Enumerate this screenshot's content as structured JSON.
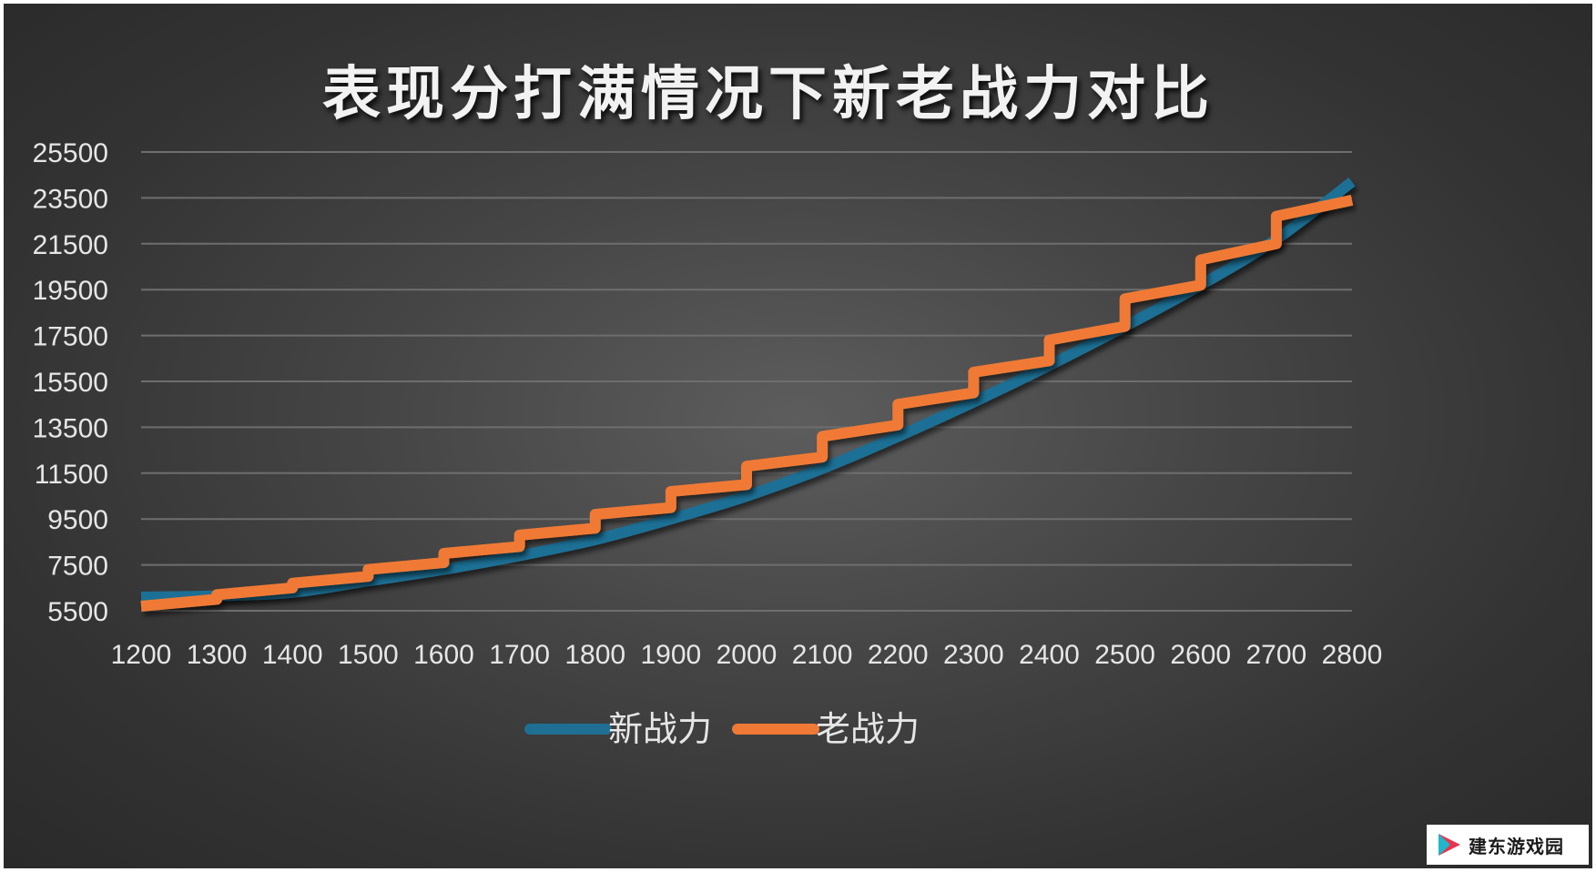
{
  "chart_data": {
    "type": "line",
    "title": "表现分打满情况下新老战力对比",
    "xlabel": "",
    "ylabel": "",
    "xlim": [
      1200,
      2800
    ],
    "ylim": [
      5500,
      25500
    ],
    "x_ticks": [
      1200,
      1300,
      1400,
      1500,
      1600,
      1700,
      1800,
      1900,
      2000,
      2100,
      2200,
      2300,
      2400,
      2500,
      2600,
      2700,
      2800
    ],
    "y_ticks": [
      5500,
      7500,
      9500,
      11500,
      13500,
      15500,
      17500,
      19500,
      21500,
      23500,
      25500
    ],
    "grid": "horizontal",
    "legend_position": "bottom",
    "series": [
      {
        "name": "新战力",
        "color": "#1f6f95",
        "style": "smooth",
        "x": [
          1200,
          1300,
          1400,
          1500,
          1600,
          1700,
          1800,
          1900,
          2000,
          2100,
          2200,
          2300,
          2400,
          2500,
          2600,
          2700,
          2800
        ],
        "values": [
          6100,
          6150,
          6300,
          6800,
          7300,
          7900,
          8600,
          9500,
          10500,
          11700,
          13100,
          14600,
          16200,
          17900,
          19700,
          21700,
          24200
        ]
      },
      {
        "name": "老战力",
        "color": "#f07a35",
        "style": "step",
        "segments": [
          {
            "x_start": 1200,
            "x_end": 1300,
            "y_start": 5700,
            "y_end": 6000
          },
          {
            "x_start": 1300,
            "x_end": 1400,
            "y_start": 6200,
            "y_end": 6500
          },
          {
            "x_start": 1400,
            "x_end": 1500,
            "y_start": 6700,
            "y_end": 7000
          },
          {
            "x_start": 1500,
            "x_end": 1600,
            "y_start": 7300,
            "y_end": 7600
          },
          {
            "x_start": 1600,
            "x_end": 1700,
            "y_start": 8000,
            "y_end": 8300
          },
          {
            "x_start": 1700,
            "x_end": 1800,
            "y_start": 8800,
            "y_end": 9100
          },
          {
            "x_start": 1800,
            "x_end": 1900,
            "y_start": 9700,
            "y_end": 10000
          },
          {
            "x_start": 1900,
            "x_end": 2000,
            "y_start": 10700,
            "y_end": 11000
          },
          {
            "x_start": 2000,
            "x_end": 2100,
            "y_start": 11800,
            "y_end": 12200
          },
          {
            "x_start": 2100,
            "x_end": 2200,
            "y_start": 13100,
            "y_end": 13600
          },
          {
            "x_start": 2200,
            "x_end": 2300,
            "y_start": 14500,
            "y_end": 15000
          },
          {
            "x_start": 2300,
            "x_end": 2400,
            "y_start": 15900,
            "y_end": 16400
          },
          {
            "x_start": 2400,
            "x_end": 2500,
            "y_start": 17300,
            "y_end": 17900
          },
          {
            "x_start": 2500,
            "x_end": 2600,
            "y_start": 19100,
            "y_end": 19700
          },
          {
            "x_start": 2600,
            "x_end": 2700,
            "y_start": 20800,
            "y_end": 21500
          },
          {
            "x_start": 2700,
            "x_end": 2800,
            "y_start": 22700,
            "y_end": 23400
          }
        ]
      }
    ]
  },
  "watermark": {
    "text": "建东游戏园",
    "icon": "play-triangle-logo"
  }
}
